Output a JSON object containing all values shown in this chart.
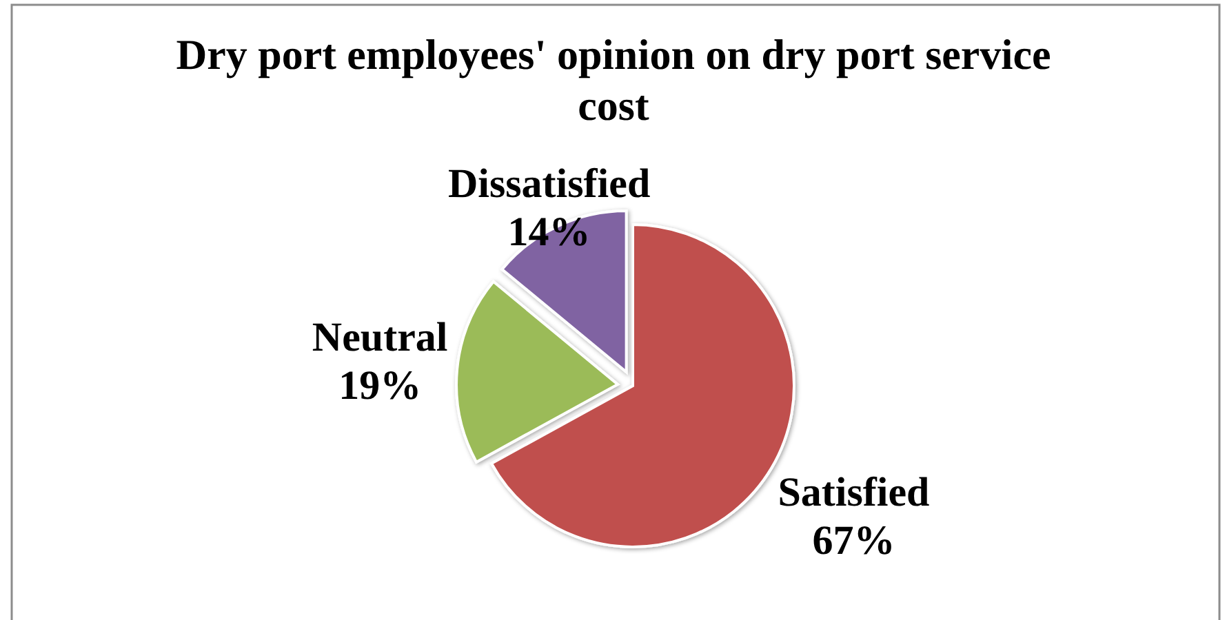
{
  "chart_data": {
    "type": "pie",
    "title": "Dry port employees' opinion on dry port service cost",
    "categories": [
      "Satisfied",
      "Neutral",
      "Dissatisfied"
    ],
    "values": [
      67,
      19,
      14
    ],
    "colors": [
      "#c0504d",
      "#9bbb59",
      "#8064a2"
    ],
    "value_labels": [
      "67%",
      "19%",
      "14%"
    ]
  }
}
